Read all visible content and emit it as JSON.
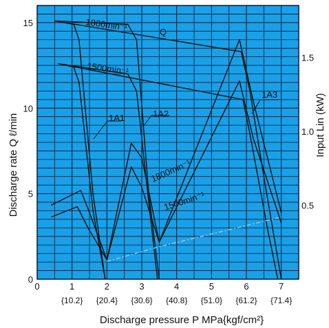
{
  "colors": {
    "plot_background": "#1aa0e6",
    "grid": "#0b1a3a",
    "curve": "#111111",
    "accent_line": "#9ec9ee"
  },
  "chart_data": {
    "type": "line",
    "title": "",
    "xlabel": "Discharge pressure P  MPa{kgf/cm²}",
    "ylabel": "Discharge rate Q ℓ/min",
    "y2label": "Input Lin (kW)",
    "xlim": [
      0,
      7.5
    ],
    "ylim": [
      0,
      16
    ],
    "y2lim": [
      0,
      1.85
    ],
    "x_ticks": [
      "0",
      "1",
      "2",
      "3",
      "4",
      "5",
      "6",
      "7"
    ],
    "x_ticks_secondary": [
      "{10.2}",
      "{20.4}",
      "{30.6}",
      "{40.8}",
      "{51.0}",
      "{61.2}",
      "{71.4}"
    ],
    "y_ticks": [
      "0",
      "5",
      "10",
      "15"
    ],
    "y2_ticks": [
      "0.5",
      "1.0",
      "1.5"
    ],
    "annotations": {
      "q": "Q",
      "rpm_1800_top": "1800min⁻¹",
      "rpm_1500_top": "1500min⁻¹",
      "rpm_1800_input": "1800min⁻¹",
      "rpm_1500_input": "1500min⁻¹",
      "a1": "1A1",
      "a2": "1A2",
      "a3": "1A3"
    },
    "series": [
      {
        "name": "1800min⁻¹",
        "axis": "left",
        "points": [
          [
            0.5,
            15.1
          ],
          [
            2.6,
            14.9
          ],
          [
            2.85,
            14.0
          ],
          [
            3.2,
            5.0
          ],
          [
            3.5,
            0.0
          ]
        ]
      },
      {
        "name": "1800min⁻¹",
        "axis": "left",
        "points": [
          [
            0.5,
            15.1
          ],
          [
            5.85,
            13.3
          ],
          [
            6.1,
            11.0
          ],
          [
            6.5,
            6.0
          ],
          [
            7.0,
            0.0
          ]
        ]
      },
      {
        "name": "1800min⁻¹",
        "axis": "left",
        "points": [
          [
            0.5,
            15.1
          ],
          [
            1.05,
            14.9
          ],
          [
            1.2,
            14.0
          ],
          [
            1.6,
            5.0
          ],
          [
            1.95,
            0.0
          ]
        ]
      },
      {
        "name": "1500min⁻¹",
        "axis": "left",
        "points": [
          [
            0.6,
            12.6
          ],
          [
            2.6,
            12.0
          ],
          [
            2.85,
            11.0
          ],
          [
            3.2,
            4.5
          ],
          [
            3.45,
            0.0
          ]
        ]
      },
      {
        "name": "1500min⁻¹",
        "axis": "left",
        "points": [
          [
            0.6,
            12.6
          ],
          [
            5.9,
            10.5
          ],
          [
            6.1,
            8.5
          ],
          [
            6.6,
            3.0
          ],
          [
            6.9,
            0.0
          ]
        ]
      },
      {
        "name": "1500min⁻¹",
        "axis": "left",
        "points": [
          [
            0.6,
            12.6
          ],
          [
            1.05,
            12.4
          ],
          [
            1.2,
            11.5
          ],
          [
            1.6,
            4.0
          ],
          [
            1.95,
            0.0
          ]
        ]
      },
      {
        "name": "1800min⁻¹",
        "axis": "right",
        "points": [
          [
            0.4,
            0.5
          ],
          [
            1.25,
            0.6
          ],
          [
            1.5,
            0.45
          ],
          [
            2.0,
            0.13
          ]
        ]
      },
      {
        "name": "1800min⁻¹",
        "axis": "right",
        "points": [
          [
            2.0,
            0.13
          ],
          [
            2.7,
            0.92
          ],
          [
            3.0,
            0.82
          ],
          [
            3.5,
            0.25
          ]
        ]
      },
      {
        "name": "1800min⁻¹",
        "axis": "right",
        "points": [
          [
            3.5,
            0.25
          ],
          [
            5.8,
            1.62
          ],
          [
            6.2,
            1.2
          ],
          [
            7.0,
            0.45
          ]
        ]
      },
      {
        "name": "1500min⁻¹",
        "axis": "right",
        "points": [
          [
            0.4,
            0.42
          ],
          [
            1.15,
            0.49
          ],
          [
            1.45,
            0.35
          ],
          [
            2.0,
            0.13
          ]
        ]
      },
      {
        "name": "1500min⁻¹",
        "axis": "right",
        "points": [
          [
            2.0,
            0.13
          ],
          [
            2.7,
            0.76
          ],
          [
            3.0,
            0.62
          ],
          [
            3.5,
            0.25
          ]
        ]
      },
      {
        "name": "1500min⁻¹",
        "axis": "right",
        "points": [
          [
            3.5,
            0.25
          ],
          [
            5.8,
            1.34
          ],
          [
            6.2,
            0.95
          ],
          [
            7.0,
            0.38
          ]
        ]
      },
      {
        "name": "",
        "axis": "right",
        "dashed": true,
        "points": [
          [
            2.0,
            0.12
          ],
          [
            3.5,
            0.22
          ],
          [
            7.0,
            0.42
          ]
        ]
      }
    ]
  }
}
